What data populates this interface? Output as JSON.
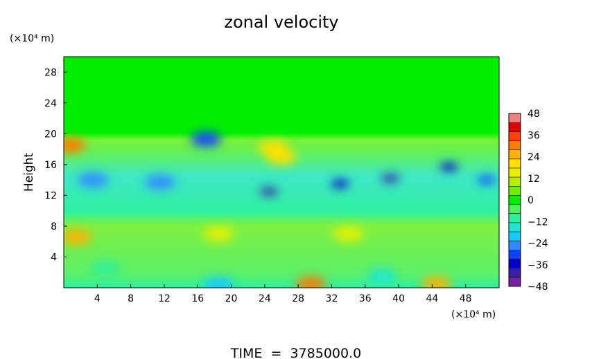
{
  "chart_data": {
    "type": "heatmap",
    "title": "zonal velocity",
    "ylabel": "Height",
    "yunit": "(×10⁴ m)",
    "xunit": "(×10⁴ m)",
    "footer": "TIME  =  3785000.0",
    "xlim": [
      0,
      52
    ],
    "ylim": [
      0,
      30
    ],
    "xticks": [
      4,
      8,
      12,
      16,
      20,
      24,
      28,
      32,
      36,
      40,
      44,
      48
    ],
    "yticks": [
      4,
      8,
      12,
      16,
      20,
      24,
      28
    ],
    "colorbar": {
      "ticks": [
        48,
        36,
        24,
        12,
        0,
        -12,
        -24,
        -36,
        -48
      ],
      "range": [
        -48,
        48
      ],
      "colors": [
        "#7a1fa2",
        "#3a1ea8",
        "#0000c8",
        "#1040ff",
        "#2f8cff",
        "#19c8ff",
        "#1ee6d2",
        "#2ef09a",
        "#4cf25a",
        "#00f000",
        "#6cf000",
        "#b6f000",
        "#e8f000",
        "#ffe000",
        "#ffb000",
        "#ff7a00",
        "#ff4000",
        "#e00000",
        "#f08080"
      ]
    },
    "features": [
      {
        "x": 1.5,
        "y": 6.6,
        "value": 26
      },
      {
        "x": 29.5,
        "y": 0.5,
        "value": 28
      },
      {
        "x": 44.5,
        "y": 0.5,
        "value": 24
      },
      {
        "x": 18.5,
        "y": 7.0,
        "value": 16
      },
      {
        "x": 34,
        "y": 7.0,
        "value": 14
      },
      {
        "x": 0.8,
        "y": 18.5,
        "value": 30
      },
      {
        "x": 25,
        "y": 18.2,
        "value": 18
      },
      {
        "x": 26,
        "y": 17,
        "value": 22
      },
      {
        "x": 24.5,
        "y": 12.5,
        "value": -40
      },
      {
        "x": 33,
        "y": 13.5,
        "value": -36
      },
      {
        "x": 39,
        "y": 14.2,
        "value": -38
      },
      {
        "x": 46,
        "y": 15.7,
        "value": -34
      },
      {
        "x": 50.5,
        "y": 14,
        "value": -32
      },
      {
        "x": 3.5,
        "y": 14,
        "value": -26
      },
      {
        "x": 17,
        "y": 19.3,
        "value": -30
      },
      {
        "x": 11.5,
        "y": 13.7,
        "value": -24
      },
      {
        "x": 5,
        "y": 2.5,
        "value": -12
      },
      {
        "x": 18.5,
        "y": 0.4,
        "value": -22
      },
      {
        "x": 38,
        "y": 1.5,
        "value": -14
      }
    ]
  }
}
